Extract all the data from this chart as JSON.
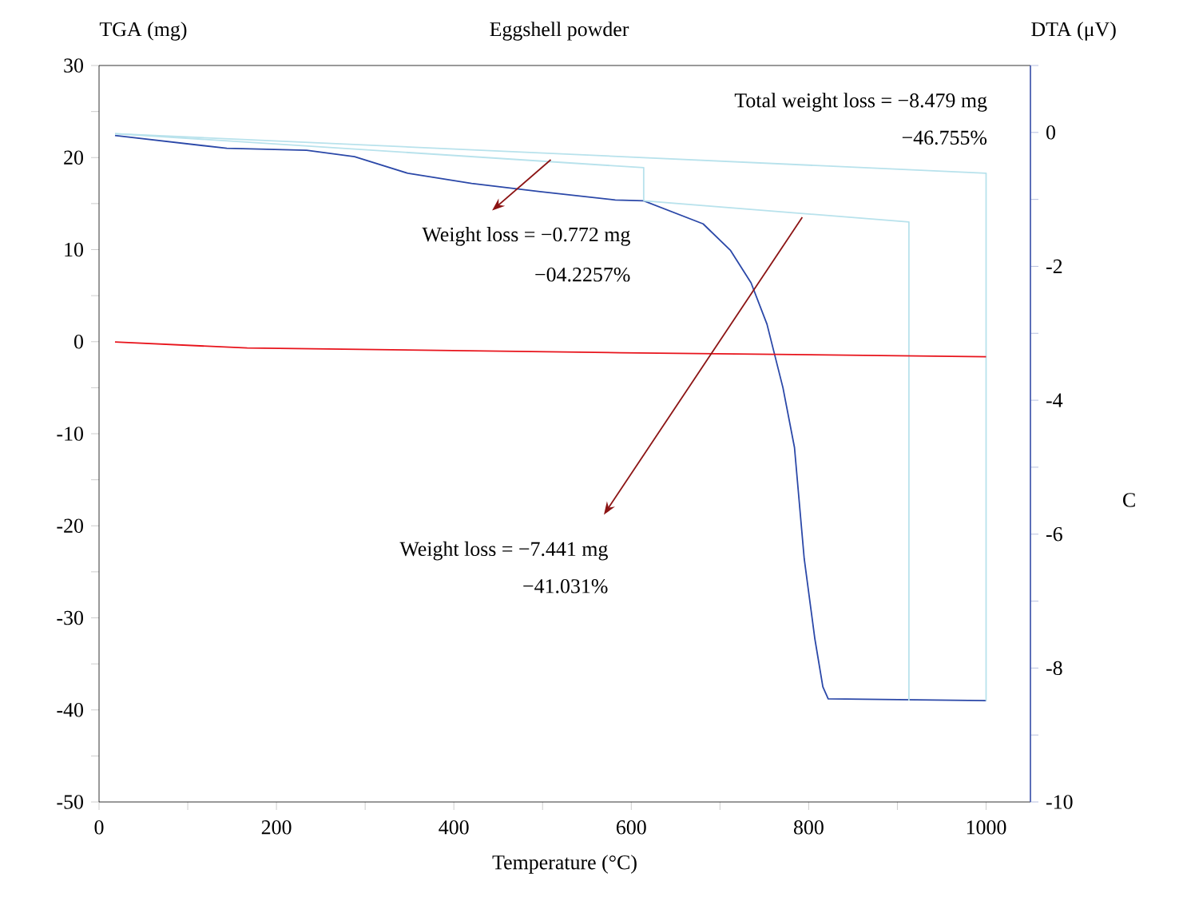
{
  "chart_data": {
    "type": "line",
    "title": "Eggshell powder",
    "xlabel": "Temperature (°C)",
    "ylabel": "TGA (mg)",
    "y2label": "DTA (μV)",
    "xlim": [
      0,
      1050
    ],
    "xticks": [
      0,
      {
        "value": 100,
        "label": null
      },
      200,
      {
        "value": 300,
        "label": null
      },
      400,
      {
        "value": 500,
        "label": null
      },
      600,
      {
        "value": 700,
        "label": null
      },
      800,
      {
        "value": 900,
        "label": null
      },
      1000
    ],
    "ylim": [
      -50,
      30
    ],
    "yticks": [
      -50,
      {
        "value": -45,
        "label": null
      },
      -40,
      {
        "value": -35,
        "label": null
      },
      -30,
      {
        "value": -25,
        "label": null
      },
      -20,
      {
        "value": -15,
        "label": null
      },
      -10,
      {
        "value": -5,
        "label": null
      },
      0,
      {
        "value": 5,
        "label": null
      },
      10,
      {
        "value": 15,
        "label": null
      },
      20,
      {
        "value": 25,
        "label": null
      },
      30
    ],
    "y2lim": [
      -10,
      1
    ],
    "y2ticks": [
      -10,
      {
        "value": -9,
        "label": null
      },
      -8,
      {
        "value": -7,
        "label": null
      },
      -6,
      {
        "value": -5,
        "label": null
      },
      -4,
      {
        "value": -3,
        "label": null
      },
      -2,
      {
        "value": -1,
        "label": null
      },
      0,
      {
        "value": 1,
        "label": null
      }
    ],
    "marker": "none",
    "line_style": "solid",
    "grid": false,
    "legend": false,
    "series": [
      {
        "color": "#2b48a8",
        "x": [
          18,
          144,
          234,
          288,
          348,
          420,
          497,
          582,
          614,
          681,
          712,
          735,
          753,
          771,
          784,
          795,
          807,
          816,
          822,
          1000
        ],
        "values": [
          22.4,
          21.0,
          20.8,
          20.1,
          18.3,
          17.2,
          16.3,
          15.4,
          15.3,
          12.8,
          9.9,
          6.4,
          1.9,
          -5.0,
          -11.5,
          -23.6,
          -32.3,
          -37.5,
          -38.8,
          -39.0
        ]
      },
      {
        "color": "#e8141c",
        "axis": "y2",
        "x": [
          18,
          167,
          587,
          1000
        ],
        "values": [
          -3.13,
          -3.22,
          -3.29,
          -3.35
        ]
      },
      {
        "color": "#b8e2ec",
        "x": [
          18,
          1000,
          1000
        ],
        "values": [
          22.6,
          18.3,
          -39.0
        ]
      },
      {
        "color": "#b8e2ec",
        "x": [
          18,
          614,
          614
        ],
        "values": [
          22.6,
          18.9,
          15.3
        ]
      },
      {
        "color": "#b8e2ec",
        "x": [
          614,
          913,
          913
        ],
        "values": [
          15.3,
          13.0,
          -39.0
        ]
      }
    ],
    "annotations": [
      "Total weight loss = −8.479 mg",
      "−46.755%",
      "Weight loss = −0.772 mg",
      "−04.2257%",
      "Weight loss = −7.441 mg",
      "−41.031%",
      "C"
    ]
  }
}
